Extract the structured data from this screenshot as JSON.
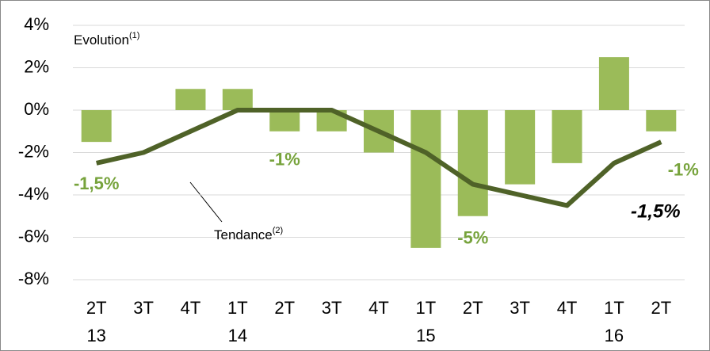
{
  "chart_data": {
    "type": "bar",
    "categories": [
      "2T",
      "3T",
      "4T",
      "1T",
      "2T",
      "3T",
      "4T",
      "1T",
      "2T",
      "3T",
      "4T",
      "1T",
      "2T"
    ],
    "year_labels": [
      "13",
      null,
      null,
      "14",
      null,
      null,
      null,
      "15",
      null,
      null,
      null,
      "16",
      null
    ],
    "series": [
      {
        "name": "Evolution",
        "name_note": "(1)",
        "type": "bar",
        "color": "#9bbb59",
        "values": [
          -1.5,
          0,
          1,
          1,
          -1,
          -1,
          -2,
          -6.5,
          -5,
          -3.5,
          -2.5,
          2.5,
          -1
        ],
        "value_labels": [
          "-1,5%",
          null,
          null,
          null,
          "-1%",
          null,
          null,
          null,
          "-5%",
          null,
          null,
          null,
          "-1%"
        ]
      },
      {
        "name": "Tendance",
        "name_note": "(2)",
        "type": "line",
        "color": "#4f6228",
        "values": [
          -2.5,
          -2,
          -1,
          0,
          0,
          0,
          -1,
          -2,
          -3.5,
          -4,
          -4.5,
          -2.5,
          -1.5
        ],
        "value_labels": [
          null,
          null,
          null,
          null,
          null,
          null,
          null,
          null,
          null,
          null,
          null,
          null,
          "-1,5%"
        ]
      }
    ],
    "ylim": [
      -8,
      4
    ],
    "yticks": [
      {
        "value": 4,
        "label": "4%"
      },
      {
        "value": 2,
        "label": "2%"
      },
      {
        "value": 0,
        "label": "0%"
      },
      {
        "value": -2,
        "label": "-2%"
      },
      {
        "value": -4,
        "label": "-4%"
      },
      {
        "value": -6,
        "label": "-6%"
      },
      {
        "value": -8,
        "label": "-8%"
      }
    ],
    "grid": true
  }
}
